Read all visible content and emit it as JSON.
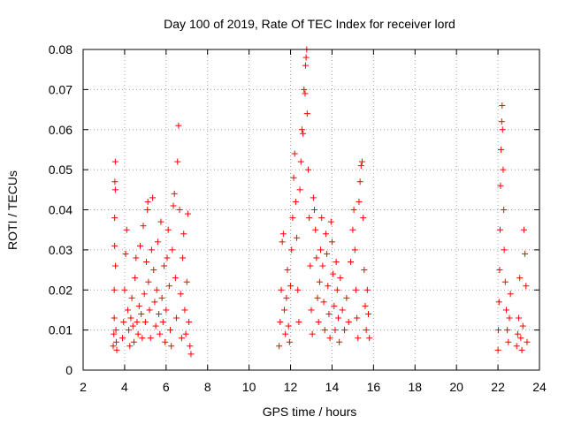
{
  "chart_data": {
    "type": "scatter",
    "marker": "plus",
    "title": "Day 100 of 2019, Rate Of TEC Index for receiver lord",
    "xlabel": "GPS time / hours",
    "ylabel": "ROTI / TECUs",
    "xlim": [
      2,
      24
    ],
    "ylim": [
      0,
      0.08
    ],
    "xticks": [
      2,
      4,
      6,
      8,
      10,
      12,
      14,
      16,
      18,
      20,
      22,
      24
    ],
    "xtick_labels": [
      "2",
      "4",
      "6",
      "8",
      "10",
      "12",
      "14",
      "16",
      "18",
      "20",
      "22",
      "24"
    ],
    "yticks": [
      0,
      0.01,
      0.02,
      0.03,
      0.04,
      0.05,
      0.06,
      0.07,
      0.08
    ],
    "ytick_labels": [
      "0",
      "0.01",
      "0.02",
      "0.03",
      "0.04",
      "0.05",
      "0.06",
      "0.07",
      "0.08"
    ],
    "grid": true,
    "color": "#ff0000",
    "series": [
      {
        "name": "ROTI",
        "points": [
          [
            3.45,
            0.006
          ],
          [
            3.48,
            0.009
          ],
          [
            3.5,
            0.013
          ],
          [
            3.5,
            0.02
          ],
          [
            3.52,
            0.031
          ],
          [
            3.52,
            0.038
          ],
          [
            3.53,
            0.047
          ],
          [
            3.55,
            0.052
          ],
          [
            3.55,
            0.045
          ],
          [
            3.56,
            0.026
          ],
          [
            3.58,
            0.01
          ],
          [
            3.6,
            0.007
          ],
          [
            3.62,
            0.005
          ],
          [
            3.9,
            0.008
          ],
          [
            3.95,
            0.012
          ],
          [
            4.0,
            0.02
          ],
          [
            4.05,
            0.029
          ],
          [
            4.1,
            0.035
          ],
          [
            4.15,
            0.015
          ],
          [
            4.2,
            0.01
          ],
          [
            4.25,
            0.006
          ],
          [
            4.3,
            0.013
          ],
          [
            4.35,
            0.018
          ],
          [
            4.4,
            0.011
          ],
          [
            4.45,
            0.007
          ],
          [
            4.5,
            0.023
          ],
          [
            4.55,
            0.028
          ],
          [
            4.6,
            0.012
          ],
          [
            4.65,
            0.009
          ],
          [
            4.7,
            0.016
          ],
          [
            4.75,
            0.031
          ],
          [
            4.8,
            0.014
          ],
          [
            4.85,
            0.008
          ],
          [
            4.9,
            0.036
          ],
          [
            4.95,
            0.019
          ],
          [
            5.0,
            0.012
          ],
          [
            5.05,
            0.027
          ],
          [
            5.1,
            0.04
          ],
          [
            5.12,
            0.042
          ],
          [
            5.15,
            0.022
          ],
          [
            5.2,
            0.015
          ],
          [
            5.25,
            0.008
          ],
          [
            5.3,
            0.03
          ],
          [
            5.35,
            0.043
          ],
          [
            5.4,
            0.025
          ],
          [
            5.45,
            0.017
          ],
          [
            5.5,
            0.011
          ],
          [
            5.55,
            0.02
          ],
          [
            5.6,
            0.032
          ],
          [
            5.65,
            0.014
          ],
          [
            5.7,
            0.009
          ],
          [
            5.75,
            0.037
          ],
          [
            5.8,
            0.018
          ],
          [
            5.85,
            0.012
          ],
          [
            5.9,
            0.026
          ],
          [
            5.95,
            0.007
          ],
          [
            6.0,
            0.015
          ],
          [
            6.05,
            0.028
          ],
          [
            6.1,
            0.035
          ],
          [
            6.15,
            0.021
          ],
          [
            6.2,
            0.01
          ],
          [
            6.25,
            0.006
          ],
          [
            6.3,
            0.03
          ],
          [
            6.35,
            0.041
          ],
          [
            6.4,
            0.044
          ],
          [
            6.45,
            0.023
          ],
          [
            6.5,
            0.013
          ],
          [
            6.55,
            0.052
          ],
          [
            6.6,
            0.061
          ],
          [
            6.65,
            0.04
          ],
          [
            6.7,
            0.019
          ],
          [
            6.75,
            0.008
          ],
          [
            6.8,
            0.028
          ],
          [
            6.85,
            0.034
          ],
          [
            6.9,
            0.015
          ],
          [
            6.95,
            0.009
          ],
          [
            7.0,
            0.022
          ],
          [
            7.05,
            0.039
          ],
          [
            7.1,
            0.012
          ],
          [
            7.15,
            0.006
          ],
          [
            7.2,
            0.004
          ],
          [
            11.45,
            0.006
          ],
          [
            11.5,
            0.012
          ],
          [
            11.55,
            0.02
          ],
          [
            11.6,
            0.032
          ],
          [
            11.65,
            0.034
          ],
          [
            11.7,
            0.015
          ],
          [
            11.75,
            0.009
          ],
          [
            11.8,
            0.018
          ],
          [
            11.85,
            0.025
          ],
          [
            11.9,
            0.011
          ],
          [
            11.95,
            0.007
          ],
          [
            12.0,
            0.021
          ],
          [
            12.05,
            0.03
          ],
          [
            12.1,
            0.038
          ],
          [
            12.15,
            0.048
          ],
          [
            12.2,
            0.054
          ],
          [
            12.25,
            0.042
          ],
          [
            12.3,
            0.033
          ],
          [
            12.35,
            0.02
          ],
          [
            12.4,
            0.012
          ],
          [
            12.45,
            0.045
          ],
          [
            12.5,
            0.052
          ],
          [
            12.55,
            0.06
          ],
          [
            12.6,
            0.059
          ],
          [
            12.65,
            0.07
          ],
          [
            12.7,
            0.069
          ],
          [
            12.72,
            0.076
          ],
          [
            12.75,
            0.078
          ],
          [
            12.78,
            0.08
          ],
          [
            12.8,
            0.064
          ],
          [
            12.85,
            0.05
          ],
          [
            12.9,
            0.038
          ],
          [
            12.95,
            0.026
          ],
          [
            13.0,
            0.015
          ],
          [
            13.05,
            0.009
          ],
          [
            13.1,
            0.043
          ],
          [
            13.15,
            0.04
          ],
          [
            13.2,
            0.035
          ],
          [
            13.25,
            0.028
          ],
          [
            13.3,
            0.018
          ],
          [
            13.35,
            0.012
          ],
          [
            13.4,
            0.022
          ],
          [
            13.45,
            0.03
          ],
          [
            13.5,
            0.038
          ],
          [
            13.55,
            0.026
          ],
          [
            13.6,
            0.017
          ],
          [
            13.65,
            0.01
          ],
          [
            13.7,
            0.034
          ],
          [
            13.75,
            0.029
          ],
          [
            13.8,
            0.021
          ],
          [
            13.85,
            0.014
          ],
          [
            13.9,
            0.008
          ],
          [
            13.95,
            0.037
          ],
          [
            14.0,
            0.032
          ],
          [
            14.05,
            0.024
          ],
          [
            14.1,
            0.016
          ],
          [
            14.15,
            0.01
          ],
          [
            14.2,
            0.027
          ],
          [
            14.25,
            0.02
          ],
          [
            14.3,
            0.013
          ],
          [
            14.35,
            0.007
          ],
          [
            14.4,
            0.023
          ],
          [
            14.5,
            0.015
          ],
          [
            14.6,
            0.01
          ],
          [
            14.7,
            0.018
          ],
          [
            14.8,
            0.012
          ],
          [
            14.9,
            0.027
          ],
          [
            15.0,
            0.035
          ],
          [
            15.05,
            0.04
          ],
          [
            15.1,
            0.03
          ],
          [
            15.15,
            0.02
          ],
          [
            15.2,
            0.013
          ],
          [
            15.25,
            0.008
          ],
          [
            15.3,
            0.042
          ],
          [
            15.35,
            0.047
          ],
          [
            15.4,
            0.051
          ],
          [
            15.45,
            0.052
          ],
          [
            15.5,
            0.038
          ],
          [
            15.55,
            0.025
          ],
          [
            15.6,
            0.016
          ],
          [
            15.65,
            0.01
          ],
          [
            15.7,
            0.02
          ],
          [
            15.75,
            0.014
          ],
          [
            15.8,
            0.008
          ],
          [
            22.0,
            0.005
          ],
          [
            22.02,
            0.01
          ],
          [
            22.05,
            0.017
          ],
          [
            22.08,
            0.025
          ],
          [
            22.1,
            0.035
          ],
          [
            22.12,
            0.046
          ],
          [
            22.15,
            0.055
          ],
          [
            22.18,
            0.062
          ],
          [
            22.2,
            0.066
          ],
          [
            22.22,
            0.06
          ],
          [
            22.25,
            0.05
          ],
          [
            22.28,
            0.04
          ],
          [
            22.3,
            0.03
          ],
          [
            22.35,
            0.022
          ],
          [
            22.4,
            0.015
          ],
          [
            22.45,
            0.01
          ],
          [
            22.5,
            0.007
          ],
          [
            22.55,
            0.013
          ],
          [
            22.6,
            0.019
          ],
          [
            22.9,
            0.006
          ],
          [
            22.95,
            0.009
          ],
          [
            23.0,
            0.013
          ],
          [
            23.05,
            0.023
          ],
          [
            23.1,
            0.008
          ],
          [
            23.15,
            0.005
          ],
          [
            23.2,
            0.011
          ],
          [
            23.25,
            0.035
          ],
          [
            23.3,
            0.029
          ],
          [
            23.35,
            0.021
          ],
          [
            23.4,
            0.007
          ]
        ]
      }
    ]
  }
}
